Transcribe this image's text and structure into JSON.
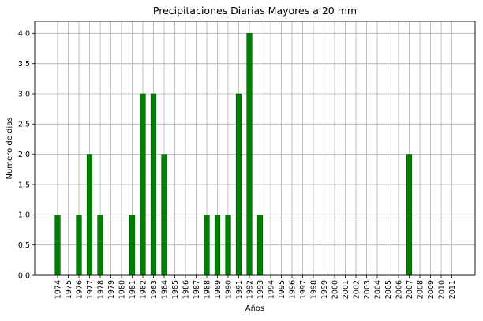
{
  "chart_data": {
    "type": "bar",
    "title": "Precipitaciones Diarias Mayores a 20 mm",
    "xlabel": "Años",
    "ylabel": "Numero de dias",
    "ylim": [
      0,
      4.2
    ],
    "yticks": [
      "0.0",
      "0.5",
      "1.0",
      "1.5",
      "2.0",
      "2.5",
      "3.0",
      "3.5",
      "4.0"
    ],
    "grid": true,
    "colors": {
      "bar": "#008000",
      "grid": "#b0b0b0",
      "axis": "#000000"
    },
    "categories": [
      "1974",
      "1975",
      "1976",
      "1977",
      "1978",
      "1979",
      "1980",
      "1981",
      "1982",
      "1983",
      "1984",
      "1985",
      "1986",
      "1987",
      "1988",
      "1989",
      "1990",
      "1991",
      "1992",
      "1993",
      "1994",
      "1995",
      "1996",
      "1997",
      "1998",
      "1999",
      "2000",
      "2001",
      "2002",
      "2003",
      "2004",
      "2005",
      "2006",
      "2007",
      "2008",
      "2009",
      "2010",
      "2011"
    ],
    "values": [
      1,
      0,
      1,
      2,
      1,
      0,
      0,
      1,
      3,
      3,
      2,
      0,
      0,
      0,
      1,
      1,
      1,
      3,
      4,
      1,
      0,
      0,
      0,
      0,
      0,
      0,
      0,
      0,
      0,
      0,
      0,
      0,
      0,
      2,
      0,
      0,
      0,
      0
    ]
  }
}
